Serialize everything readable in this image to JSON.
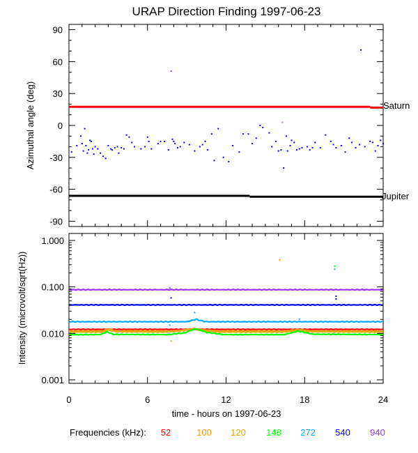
{
  "chart_data": [
    {
      "type": "scatter",
      "title": "URAP Direction Finding  1997-06-23",
      "ylabel": "Azimuthal angle (deg)",
      "xlim": [
        0,
        24
      ],
      "ylim": [
        -95,
        95
      ],
      "yticks": [
        90,
        60,
        30,
        0,
        -30,
        -60,
        -90
      ],
      "ytick_labels": [
        "90",
        "60",
        "30",
        "0",
        "-30",
        "-60",
        "-90"
      ],
      "grid": false,
      "reference_lines": [
        {
          "name": "Saturn",
          "color": "#ff0000",
          "segments": [
            [
              0,
              23.0,
              17.5
            ],
            [
              23.0,
              24,
              16.8
            ]
          ]
        },
        {
          "name": "Jupiter",
          "color": "#000000",
          "segments": [
            [
              0,
              13.8,
              -66.2
            ],
            [
              13.8,
              24,
              -67.0
            ]
          ]
        }
      ],
      "series": [
        {
          "color": "#0000ff",
          "points": [
            [
              0.2,
              -25
            ],
            [
              0.6,
              -19
            ],
            [
              0.9,
              -10
            ],
            [
              1.0,
              -17
            ],
            [
              1.1,
              -24
            ],
            [
              1.2,
              -3
            ],
            [
              1.3,
              -19
            ],
            [
              1.4,
              -26
            ],
            [
              1.5,
              -23
            ],
            [
              1.6,
              -14
            ],
            [
              1.7,
              -15
            ],
            [
              1.8,
              -22
            ],
            [
              1.9,
              -27
            ],
            [
              2.0,
              -20
            ],
            [
              2.2,
              -22
            ],
            [
              2.4,
              -26
            ],
            [
              2.6,
              -29
            ],
            [
              2.8,
              -31
            ],
            [
              3.0,
              -19
            ],
            [
              3.2,
              -22
            ],
            [
              3.3,
              -23
            ],
            [
              3.5,
              -21
            ],
            [
              3.7,
              -20
            ],
            [
              3.8,
              -26
            ],
            [
              4.0,
              -21
            ],
            [
              4.2,
              -22
            ],
            [
              4.4,
              -9
            ],
            [
              4.6,
              -11
            ],
            [
              4.8,
              -16
            ],
            [
              5.0,
              -20
            ],
            [
              5.5,
              -22
            ],
            [
              5.8,
              -20
            ],
            [
              6.0,
              -11
            ],
            [
              6.1,
              -15
            ],
            [
              6.3,
              -22
            ],
            [
              6.8,
              -17
            ],
            [
              7.0,
              -15
            ],
            [
              7.3,
              -15
            ],
            [
              7.6,
              -23
            ],
            [
              7.9,
              -13
            ],
            [
              8.0,
              -15
            ],
            [
              8.1,
              -17
            ],
            [
              8.3,
              -21
            ],
            [
              8.5,
              -20
            ],
            [
              8.8,
              -16
            ],
            [
              9.2,
              -18
            ],
            [
              9.6,
              -24
            ],
            [
              10.0,
              -20
            ],
            [
              10.2,
              -18
            ],
            [
              10.4,
              -15
            ],
            [
              10.6,
              -23
            ],
            [
              10.9,
              -8
            ],
            [
              11.1,
              -33
            ],
            [
              11.4,
              -3
            ],
            [
              11.8,
              -30
            ],
            [
              12.2,
              -34
            ],
            [
              12.5,
              -19
            ],
            [
              13.0,
              -25
            ],
            [
              13.3,
              -8
            ],
            [
              13.7,
              -8
            ],
            [
              14.0,
              -17
            ],
            [
              14.3,
              -12
            ],
            [
              14.6,
              0
            ],
            [
              14.8,
              -2
            ],
            [
              15.3,
              -7
            ],
            [
              15.5,
              -20
            ],
            [
              15.8,
              -15
            ],
            [
              16.0,
              -24
            ],
            [
              16.2,
              -23
            ],
            [
              16.4,
              -40
            ],
            [
              16.6,
              -10
            ],
            [
              16.7,
              -24
            ],
            [
              16.9,
              -19
            ],
            [
              17.0,
              -14
            ],
            [
              17.2,
              -16
            ],
            [
              17.4,
              -23
            ],
            [
              17.6,
              -22
            ],
            [
              17.8,
              -21
            ],
            [
              18.2,
              -20
            ],
            [
              18.4,
              -23
            ],
            [
              18.6,
              -21
            ],
            [
              18.8,
              -16
            ],
            [
              19.2,
              -21
            ],
            [
              19.6,
              -9
            ],
            [
              20.0,
              -15
            ],
            [
              20.2,
              -18
            ],
            [
              20.4,
              -21
            ],
            [
              20.8,
              -19
            ],
            [
              21.1,
              -25
            ],
            [
              21.4,
              -12
            ],
            [
              21.6,
              -16
            ],
            [
              21.9,
              -21
            ],
            [
              22.2,
              -18
            ],
            [
              22.6,
              -20
            ],
            [
              23.0,
              -15
            ],
            [
              23.2,
              -16
            ],
            [
              23.4,
              -24
            ],
            [
              23.6,
              -19
            ],
            [
              23.8,
              -14
            ],
            [
              24.0,
              -17
            ]
          ]
        },
        {
          "color": "#9933ff",
          "points": [
            [
              7.8,
              51
            ]
          ]
        },
        {
          "color": "#cc66ff",
          "points": [
            [
              16.3,
              3
            ]
          ]
        },
        {
          "color": "#0000cc",
          "points": [
            [
              22.3,
              71
            ]
          ]
        }
      ]
    },
    {
      "type": "line",
      "ylabel": "Intensity (microvolt/sqrt(Hz))",
      "xlabel": "time - hours on 1997-06-23",
      "xlim": [
        0,
        24
      ],
      "xticks": [
        0,
        6,
        12,
        18,
        24
      ],
      "xtick_labels": [
        "0",
        "6",
        "12",
        "18",
        "24"
      ],
      "y_scale": "log",
      "ylim": [
        0.001,
        1.0
      ],
      "yticks": [
        1.0,
        0.1,
        0.01,
        0.001
      ],
      "ytick_labels": [
        "1.000",
        "0.100",
        "0.010",
        "0.001"
      ],
      "grid": false,
      "legend": {
        "label": "Frequencies (kHz):",
        "placement": "bottom",
        "entries": [
          {
            "name": "52",
            "color": "#ff0000"
          },
          {
            "name": "100",
            "color": "#ff9900"
          },
          {
            "name": "120",
            "color": "#ddaa00"
          },
          {
            "name": "148",
            "color": "#00ff00"
          },
          {
            "name": "272",
            "color": "#00aaff"
          },
          {
            "name": "540",
            "color": "#0000ff"
          },
          {
            "name": "940",
            "color": "#9933ff"
          }
        ]
      },
      "series": [
        {
          "name": "52",
          "color": "#ff0000",
          "x": [
            0,
            24
          ],
          "values": [
            0.0122,
            0.0122
          ]
        },
        {
          "name": "100",
          "color": "#ff9900",
          "x": [
            0,
            2.5,
            3.0,
            3.6,
            7.5,
            8.5,
            9.5,
            10.3,
            11.5,
            16.5,
            17.5,
            18.5,
            24
          ],
          "values": [
            0.0112,
            0.0112,
            0.0125,
            0.0113,
            0.0112,
            0.0116,
            0.0126,
            0.0119,
            0.0112,
            0.0112,
            0.0121,
            0.0113,
            0.0112
          ],
          "outliers": [
            [
              16.1,
              0.38
            ],
            [
              7.8,
              0.0068
            ]
          ]
        },
        {
          "name": "120",
          "color": "#ddaa00",
          "x": [
            0,
            2.5,
            3.0,
            3.6,
            7.5,
            8.5,
            9.5,
            10.3,
            11.5,
            16.5,
            17.5,
            18.5,
            24
          ],
          "values": [
            0.0107,
            0.0107,
            0.0118,
            0.0108,
            0.0107,
            0.0112,
            0.0122,
            0.0114,
            0.0107,
            0.0107,
            0.0117,
            0.0108,
            0.0107
          ]
        },
        {
          "name": "148",
          "color": "#00ff00",
          "x": [
            0,
            2.4,
            2.9,
            3.4,
            7.5,
            8.8,
            9.7,
            10.5,
            11.8,
            16.5,
            17.5,
            18.6,
            24
          ],
          "values": [
            0.0094,
            0.0094,
            0.0108,
            0.0095,
            0.0094,
            0.0102,
            0.0125,
            0.0105,
            0.0094,
            0.0094,
            0.0112,
            0.0096,
            0.0094
          ],
          "outliers": [
            [
              20.3,
              0.28
            ]
          ]
        },
        {
          "name": "272",
          "color": "#00aaff",
          "x": [
            0,
            9.0,
            9.7,
            10.4,
            24
          ],
          "values": [
            0.0178,
            0.0178,
            0.02,
            0.0178,
            0.0178
          ],
          "outliers": [
            [
              20.3,
              0.24
            ],
            [
              7.7,
              0.015
            ],
            [
              9.6,
              0.028
            ],
            [
              17.6,
              0.02
            ]
          ]
        },
        {
          "name": "540",
          "color": "#0000ff",
          "x": [
            0,
            24
          ],
          "values": [
            0.041,
            0.041
          ],
          "outliers": [
            [
              7.8,
              0.058
            ],
            [
              20.4,
              0.063
            ],
            [
              20.4,
              0.055
            ]
          ]
        },
        {
          "name": "940",
          "color": "#9933ff",
          "x": [
            0,
            24
          ],
          "values": [
            0.087,
            0.087
          ],
          "outliers": [
            [
              7.7,
              0.095
            ]
          ]
        }
      ]
    }
  ],
  "annotations": {
    "saturn_label": "Saturn",
    "jupiter_label": "Jupiter"
  }
}
